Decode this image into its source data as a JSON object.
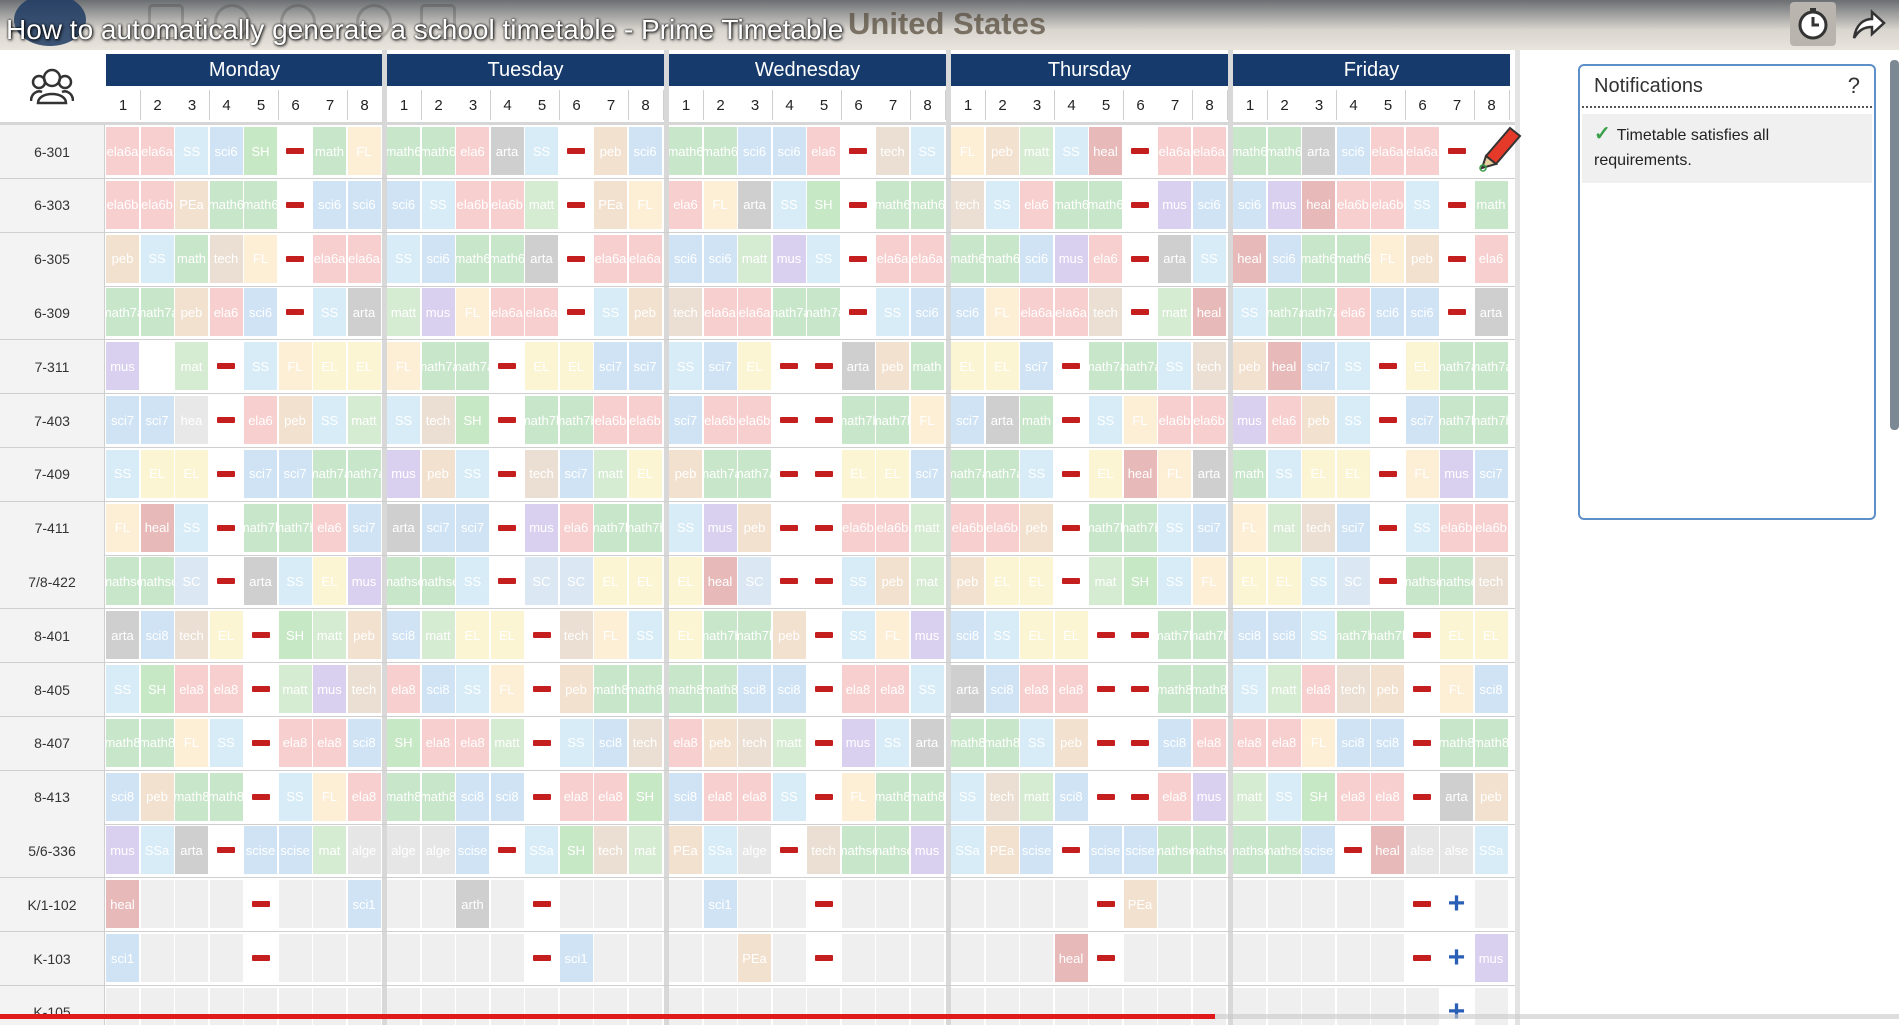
{
  "video": {
    "title": "How to automatically generate a school timetable - Prime Timetable",
    "progress": 0.64
  },
  "header": {
    "region": "United States"
  },
  "days": [
    "Monday",
    "Tuesday",
    "Wednesday",
    "Thursday",
    "Friday"
  ],
  "periods": [
    "1",
    "2",
    "3",
    "4",
    "5",
    "6",
    "7",
    "8"
  ],
  "notifications": {
    "title": "Notifications",
    "help": "?",
    "message": "Timetable satisfies all requirements."
  },
  "colors": {
    "day_header": "#153a6b",
    "dash": "#c51e1e",
    "plus": "#2b5fb6",
    "panel_border": "#5d8fc9",
    "check": "#3aa04a"
  },
  "icons": {
    "group": "group-icon",
    "clock": "clock-icon",
    "share": "share-icon",
    "pencil": "pencil-icon",
    "check": "check-icon"
  },
  "rows": [
    {
      "label": "6-301",
      "cells": [
        "ela6a",
        "ela6a",
        "SS",
        "sci6",
        "SH",
        "-",
        "math",
        "FL",
        "math6",
        "math6",
        "ela6",
        "arta",
        "SS",
        "-",
        "peb",
        "sci6",
        "math6",
        "math6",
        "sci6",
        "sci6",
        "ela6",
        "-",
        "tech",
        "SS",
        "FL",
        "peb",
        "matt",
        "SS",
        "heal",
        "-",
        "ela6a",
        "ela6a",
        "math6",
        "math6",
        "arta",
        "sci6",
        "ela6a",
        "ela6a",
        "-",
        "~"
      ]
    },
    {
      "label": "6-303",
      "cells": [
        "ela6b",
        "ela6b",
        "PEa",
        "math6",
        "math6",
        "-",
        "sci6",
        "sci6",
        "sci6",
        "SS",
        "ela6b",
        "ela6b",
        "matt",
        "-",
        "PEa",
        "FL",
        "ela6",
        "FL",
        "arta",
        "SS",
        "SH",
        "-",
        "math6",
        "math6",
        "tech",
        "SS",
        "ela6",
        "math6",
        "math6",
        "-",
        "mus",
        "sci6",
        "sci6",
        "mus",
        "heal",
        "ela6b",
        "ela6b",
        "SS",
        "-",
        "math"
      ]
    },
    {
      "label": "6-305",
      "cells": [
        "peb",
        "SS",
        "math",
        "tech",
        "FL",
        "-",
        "ela6a",
        "ela6a",
        "SS",
        "sci6",
        "math6",
        "math6",
        "arta",
        "-",
        "ela6a",
        "ela6a",
        "sci6",
        "sci6",
        "matt",
        "mus",
        "SS",
        "-",
        "ela6a",
        "ela6a",
        "math6",
        "math6",
        "sci6",
        "mus",
        "ela6",
        "-",
        "arta",
        "SS",
        "heal",
        "sci6",
        "math6",
        "math6",
        "FL",
        "peb",
        "-",
        "ela6"
      ]
    },
    {
      "label": "6-309",
      "cells": [
        "math7a",
        "math7a",
        "peb",
        "ela6",
        "sci6",
        "-",
        "SS",
        "arta",
        "matt",
        "mus",
        "FL",
        "ela6a",
        "ela6a",
        "-",
        "SS",
        "peb",
        "tech",
        "ela6a",
        "ela6a",
        "math7a",
        "math7a",
        "-",
        "SS",
        "sci6",
        "sci6",
        "FL",
        "ela6a",
        "ela6a",
        "tech",
        "-",
        "matt",
        "heal",
        "SS",
        "math7a",
        "math7a",
        "ela6",
        "sci6",
        "sci6",
        "-",
        "arta"
      ]
    },
    {
      "label": "7-311",
      "cells": [
        "mus",
        "",
        "mat",
        "-",
        "SS",
        "FL",
        "EL",
        "EL",
        "FL",
        "math7a",
        "math7a",
        "-",
        "EL",
        "EL",
        "sci7",
        "sci7",
        "SS",
        "sci7",
        "EL",
        "-",
        "-",
        "arta",
        "peb",
        "math",
        "EL",
        "EL",
        "sci7",
        "-",
        "math7a",
        "math7a",
        "SS",
        "tech",
        "peb",
        "heal",
        "sci7",
        "SS",
        "-",
        "EL",
        "math7a",
        "math7a"
      ]
    },
    {
      "label": "7-403",
      "cells": [
        "sci7",
        "sci7",
        "hea",
        "-",
        "ela6",
        "peb",
        "SS",
        "matt",
        "SS",
        "tech",
        "SH",
        "-",
        "math7b",
        "math7b",
        "ela6b",
        "ela6b",
        "sci7",
        "ela6b",
        "ela6b",
        "-",
        "-",
        "math7b",
        "math7b",
        "FL",
        "sci7",
        "arta",
        "math",
        "-",
        "SS",
        "FL",
        "ela6b",
        "ela6b",
        "mus",
        "ela6",
        "peb",
        "SS",
        "-",
        "sci7",
        "math7b",
        "math7b"
      ]
    },
    {
      "label": "7-409",
      "cells": [
        "SS",
        "EL",
        "EL",
        "-",
        "sci7",
        "sci7",
        "math7a",
        "math7a",
        "mus",
        "peb",
        "SS",
        "-",
        "tech",
        "sci7",
        "matt",
        "EL",
        "peb",
        "math7a",
        "math7a",
        "-",
        "-",
        "EL",
        "EL",
        "sci7",
        "math7a",
        "math7a",
        "SS",
        "-",
        "EL",
        "heal",
        "FL",
        "arta",
        "math",
        "SS",
        "EL",
        "EL",
        "-",
        "FL",
        "mus",
        "sci7"
      ]
    },
    {
      "label": "7-411",
      "cells": [
        "FL",
        "heal",
        "SS",
        "-",
        "math7b",
        "math7b",
        "ela6",
        "sci7",
        "arta",
        "sci7",
        "sci7",
        "-",
        "mus",
        "ela6",
        "math7b",
        "math7b",
        "SS",
        "mus",
        "peb",
        "-",
        "-",
        "ela6b",
        "ela6b",
        "matt",
        "ela6b",
        "ela6b",
        "peb",
        "-",
        "math7b",
        "math7b",
        "SS",
        "sci7",
        "FL",
        "mat",
        "tech",
        "sci7",
        "-",
        "SS",
        "ela6b",
        "ela6b"
      ]
    },
    {
      "label": "7/8-422",
      "cells": [
        "mathse",
        "mathse",
        "SC",
        "-",
        "arta",
        "SS",
        "EL",
        "mus",
        "mathse",
        "mathse",
        "SS",
        "-",
        "SC",
        "SC",
        "EL",
        "EL",
        "EL",
        "heal",
        "SC",
        "-",
        "-",
        "SS",
        "peb",
        "mat",
        "peb",
        "EL",
        "EL",
        "-",
        "mat",
        "SH",
        "SS",
        "FL",
        "EL",
        "EL",
        "SS",
        "SC",
        "-",
        "mathse",
        "mathse",
        "tech"
      ]
    },
    {
      "label": "8-401",
      "cells": [
        "arta",
        "sci8",
        "tech",
        "EL",
        "-",
        "SH",
        "matt",
        "peb",
        "sci8",
        "matt",
        "EL",
        "EL",
        "-",
        "tech",
        "FL",
        "SS",
        "EL",
        "math7b",
        "math7b",
        "peb",
        "-",
        "SS",
        "FL",
        "mus",
        "sci8",
        "SS",
        "EL",
        "EL",
        "-",
        "-",
        "math7b",
        "math7b",
        "sci8",
        "sci8",
        "SS",
        "math7b",
        "math7b",
        "-",
        "EL",
        "EL"
      ]
    },
    {
      "label": "8-405",
      "cells": [
        "SS",
        "SH",
        "ela8",
        "ela8",
        "-",
        "matt",
        "mus",
        "tech",
        "ela8",
        "sci8",
        "SS",
        "FL",
        "-",
        "peb",
        "math8",
        "math8",
        "math8",
        "math8",
        "sci8",
        "sci8",
        "-",
        "ela8",
        "ela8",
        "SS",
        "arta",
        "sci8",
        "ela8",
        "ela8",
        "-",
        "-",
        "math8",
        "math8",
        "SS",
        "matt",
        "ela8",
        "tech",
        "peb",
        "-",
        "FL",
        "sci8"
      ]
    },
    {
      "label": "8-407",
      "cells": [
        "math8",
        "math8",
        "FL",
        "SS",
        "-",
        "ela8",
        "ela8",
        "sci8",
        "SH",
        "ela8",
        "ela8",
        "matt",
        "-",
        "SS",
        "sci8",
        "tech",
        "ela8",
        "peb",
        "tech",
        "matt",
        "-",
        "mus",
        "SS",
        "arta",
        "math8",
        "math8",
        "SS",
        "peb",
        "-",
        "-",
        "sci8",
        "ela8",
        "ela8",
        "ela8",
        "FL",
        "sci8",
        "sci8",
        "-",
        "math8",
        "math8"
      ]
    },
    {
      "label": "8-413",
      "cells": [
        "sci8",
        "peb",
        "math8",
        "math8",
        "-",
        "SS",
        "FL",
        "ela8",
        "math8",
        "math8",
        "sci8",
        "sci8",
        "-",
        "ela8",
        "ela8",
        "SH",
        "sci8",
        "ela8",
        "ela8",
        "SS",
        "-",
        "FL",
        "math8",
        "math8",
        "SS",
        "tech",
        "matt",
        "sci8",
        "-",
        "-",
        "ela8",
        "mus",
        "matt",
        "SS",
        "SH",
        "ela8",
        "ela8",
        "-",
        "arta",
        "peb"
      ]
    },
    {
      "label": "5/6-336",
      "cells": [
        "mus",
        "SSa",
        "arta",
        "-",
        "scise",
        "scise",
        "mat",
        "alge",
        "alge",
        "alge",
        "scise",
        "-",
        "SSa",
        "SH",
        "tech",
        "mat",
        "PEa",
        "SSa",
        "alge",
        "-",
        "tech",
        "mathse",
        "mathse",
        "mus",
        "SSa",
        "PEa",
        "scise",
        "-",
        "scise",
        "scise",
        "mathse",
        "mathse",
        "mathse",
        "mathse",
        "scise",
        "-",
        "heal",
        "alse",
        "alse",
        "SSa"
      ]
    },
    {
      "label": "K/1-102",
      "cells": [
        "heal",
        "",
        "",
        "",
        "-",
        "",
        "",
        "sci1",
        "",
        "",
        "arth",
        "",
        "-",
        "",
        "",
        "",
        "",
        "sci1",
        "",
        "",
        "-",
        "",
        "",
        "",
        "",
        "",
        "",
        "",
        "-",
        "PEa",
        "",
        "",
        "",
        "",
        "",
        "",
        "",
        "-",
        "+",
        ""
      ]
    },
    {
      "label": "K-103",
      "cells": [
        "sci1",
        "",
        "",
        "",
        "-",
        "",
        "",
        "",
        "",
        "",
        "",
        "",
        "-",
        "sci1",
        "",
        "",
        "",
        "",
        "PEa",
        "",
        "-",
        "",
        "",
        "",
        "",
        "",
        "",
        "heal",
        "-",
        "",
        "",
        "",
        "",
        "",
        "",
        "",
        "",
        "-",
        "+",
        "mus"
      ]
    },
    {
      "label": "K-105",
      "cells": [
        "",
        "",
        "",
        "",
        "",
        "",
        "",
        "",
        "",
        "",
        "",
        "",
        "",
        "",
        "",
        "",
        "",
        "",
        "",
        "",
        "",
        "",
        "",
        "",
        "",
        "",
        "",
        "",
        "",
        "",
        "",
        "",
        "",
        "",
        "",
        "",
        "",
        "",
        "+",
        ""
      ]
    }
  ]
}
